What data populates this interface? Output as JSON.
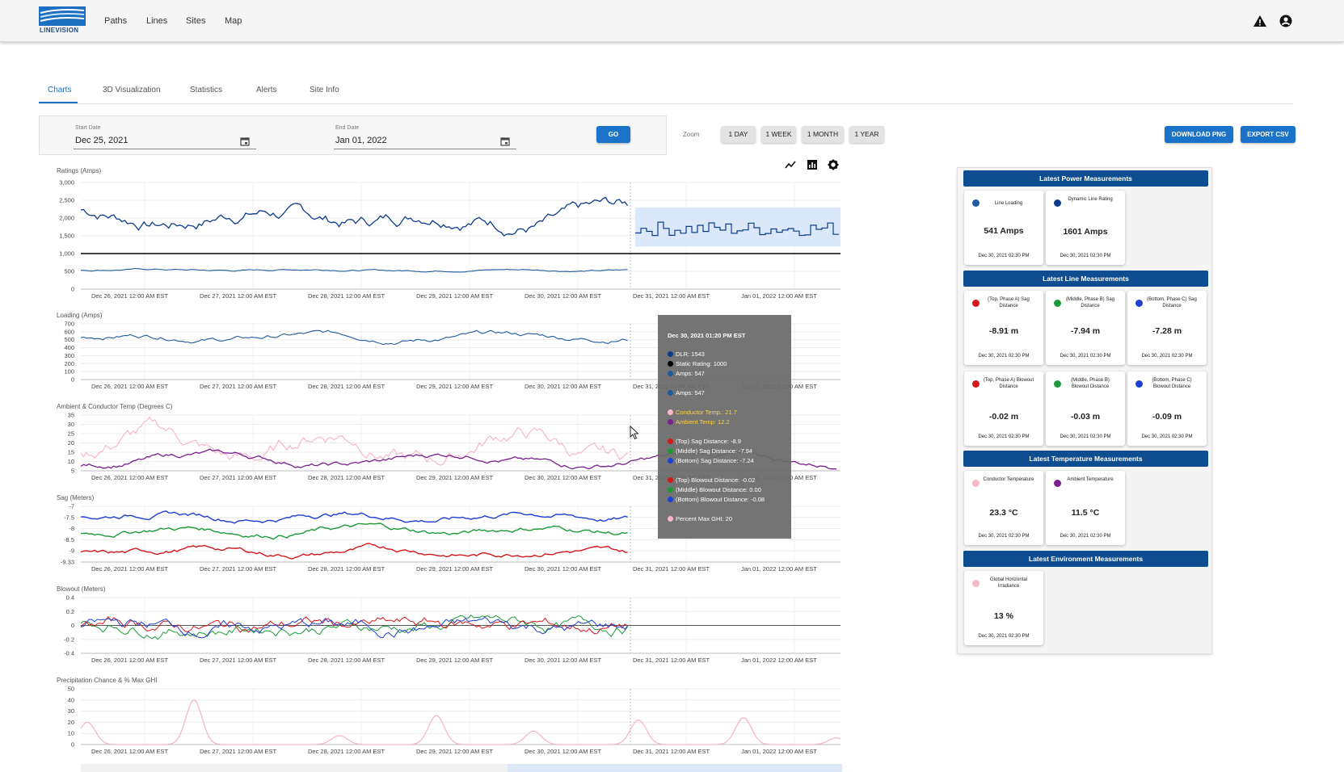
{
  "header": {
    "logo_text": "LINEVISION",
    "nav": [
      "Paths",
      "Lines",
      "Sites",
      "Map"
    ]
  },
  "tabs": [
    "Charts",
    "3D Visualization",
    "Statistics",
    "Alerts",
    "Site Info"
  ],
  "dates": {
    "start_label": "Start Date",
    "start_value": "Dec 25, 2021",
    "end_label": "End Date",
    "end_value": "Jan 01, 2022",
    "go": "GO"
  },
  "zoom": {
    "label": "Zoom",
    "buttons": [
      "1 DAY",
      "1 WEEK",
      "1 MONTH",
      "1 YEAR"
    ]
  },
  "actions": {
    "download": "DOWNLOAD PNG",
    "export": "EXPORT CSV"
  },
  "x_ticks": [
    "Dec 26, 2021 12:00 AM  EST",
    "Dec 27, 2021 12:00 AM  EST",
    "Dec 28, 2021 12:00 AM  EST",
    "Dec 29, 2021 12:00 AM  EST",
    "Dec 30, 2021 12:00 AM  EST",
    "Dec 31, 2021 12:00 AM  EST",
    "Jan 01, 2022 12:00 AM  EST"
  ],
  "charts": [
    {
      "title": "Ratings (Amps)",
      "yticks": [
        "3,000",
        "2,500",
        "2,000",
        "1,500",
        "1,000",
        "500",
        "0"
      ]
    },
    {
      "title": "Loading (Amps)",
      "yticks": [
        "700",
        "600",
        "500",
        "400",
        "300",
        "200",
        "100",
        "0"
      ]
    },
    {
      "title": "Ambient & Conductor Temp (Degrees C)",
      "yticks": [
        "35",
        "30",
        "25",
        "20",
        "15",
        "10",
        "5"
      ]
    },
    {
      "title": "Sag  (Meters)",
      "yticks": [
        "-7",
        "-7.5",
        "-8",
        "-8.5",
        "-9",
        "-9.33"
      ]
    },
    {
      "title": "Blowout (Meters)",
      "yticks": [
        "0.4",
        "0.2",
        "0",
        "-0.2",
        "-0.4"
      ]
    },
    {
      "title": "Precipitation Chance & % Max GHI",
      "yticks": [
        "50",
        "40",
        "30",
        "20",
        "10",
        "0"
      ]
    }
  ],
  "tooltip": {
    "title": "Dec 30, 2021 01:20 PM EST",
    "rows": [
      {
        "text": "DLR: 1543",
        "color": "#0d3c8c"
      },
      {
        "text": "Static Rating: 1000",
        "color": "#000000"
      },
      {
        "text": "Amps: 547",
        "color": "#1f5b9e"
      },
      {
        "text": "Amps: 547",
        "color": "#1f5b9e"
      },
      {
        "text": "Conductor Temp.: 21.7",
        "color": "#f7b8c8"
      },
      {
        "text": "Ambient Temp: 12.2",
        "color": "#7b1f8f"
      },
      {
        "text": "(Top) Sag Distance: -8.9",
        "color": "#d4181c"
      },
      {
        "text": "(Middle) Sag Distance: -7.94",
        "color": "#1c9a3a"
      },
      {
        "text": "(Bottom) Sag Distance: -7.24",
        "color": "#1f3ed6"
      },
      {
        "text": "(Top) Blowout Distance: -0.02",
        "color": "#d4181c"
      },
      {
        "text": "(Middle) Blowout Distance: 0.00",
        "color": "#1c9a3a"
      },
      {
        "text": "(Bottom) Blowout Distance: -0.08",
        "color": "#1f3ed6"
      },
      {
        "text": "Percent Max GHI: 20",
        "color": "#f7b8c8"
      }
    ]
  },
  "panel": {
    "sections": [
      {
        "title": "Latest Power Measurements",
        "cards": [
          {
            "label": "Line Loading",
            "value": "541 Amps",
            "ts": "Dec 30, 2021 02:30 PM",
            "color": "#1f5b9e"
          },
          {
            "label": "Dynamic Line Rating",
            "value": "1601 Amps",
            "ts": "Dec 30, 2021 02:30 PM",
            "color": "#0d3c8c"
          }
        ]
      },
      {
        "title": "Latest Line Measurements",
        "cards": [
          {
            "label": "(Top, Phase A) Sag Distance",
            "value": "-8.91 m",
            "ts": "Dec 30, 2021 02:30 PM",
            "color": "#d4181c"
          },
          {
            "label": "(Middle, Phase B) Sag Distance",
            "value": "-7.94 m",
            "ts": "Dec 30, 2021 02:30 PM",
            "color": "#1c9a3a"
          },
          {
            "label": "(Bottom, Phase C) Sag Distance",
            "value": "-7.28 m",
            "ts": "Dec 30, 2021 02:30 PM",
            "color": "#1f3ed6"
          },
          {
            "label": "(Top, Phase A) Blowout Distance",
            "value": "-0.02 m",
            "ts": "Dec 30, 2021 02:30 PM",
            "color": "#d4181c"
          },
          {
            "label": "(Middle, Phase B) Blowout Distance",
            "value": "-0.03 m",
            "ts": "Dec 30, 2021 02:30 PM",
            "color": "#1c9a3a"
          },
          {
            "label": "(Bottom, Phase C) Blowout Distance",
            "value": "-0.09 m",
            "ts": "Dec 30, 2021 02:30 PM",
            "color": "#1f3ed6"
          }
        ]
      },
      {
        "title": "Latest Temperature Measurements",
        "cards": [
          {
            "label": "Conductor Temperature",
            "value": "23.3 °C",
            "ts": "Dec 30, 2021 02:30 PM",
            "color": "#f7b8c8"
          },
          {
            "label": "Ambient Temperature",
            "value": "11.5 °C",
            "ts": "Dec 30, 2021 02:30 PM",
            "color": "#7b1f8f"
          }
        ]
      },
      {
        "title": "Latest Environment Measurements",
        "cards": [
          {
            "label": "Global Horizontal Irradiance",
            "value": "13 %",
            "ts": "Dec 30, 2021 02:30 PM",
            "color": "#f7b8c8"
          }
        ]
      }
    ]
  },
  "icons": [
    "line-chart-icon",
    "bar-chart-icon",
    "gear-icon",
    "warning-icon",
    "account-icon",
    "calendar-icon"
  ]
}
